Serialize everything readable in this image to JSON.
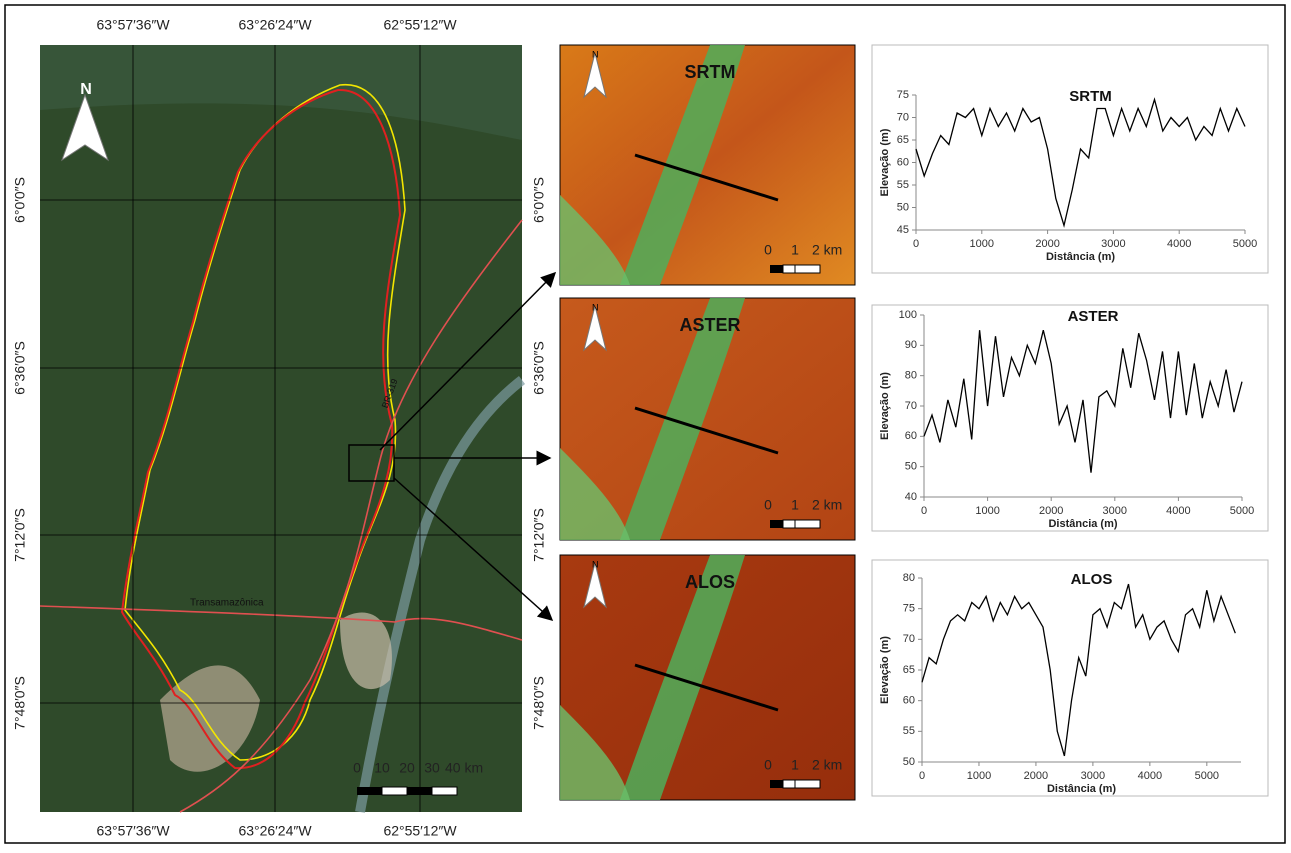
{
  "map": {
    "lon_labels": [
      "63°57′36″W",
      "63°26′24″W",
      "62°55′12″W"
    ],
    "lat_labels": [
      "6°0′0″S",
      "6°36′0″S",
      "7°12′0″S",
      "7°48′0″S"
    ],
    "north": "N",
    "road_labels": [
      "Transamazônica",
      "BR-319"
    ],
    "scale_labels": [
      "0",
      "10",
      "20",
      "30",
      "40 km"
    ]
  },
  "panels": [
    {
      "title": "SRTM",
      "north": "N",
      "scale_labels": [
        "0",
        "1",
        "2 km"
      ]
    },
    {
      "title": "ASTER",
      "north": "N",
      "scale_labels": [
        "0",
        "1",
        "2 km"
      ]
    },
    {
      "title": "ALOS",
      "north": "N",
      "scale_labels": [
        "0",
        "1",
        "2 km"
      ]
    }
  ],
  "chart_data": [
    {
      "type": "line",
      "title": "SRTM",
      "xlabel": "Distância (m)",
      "ylabel": "Elevação (m)",
      "color": "#000000",
      "x": [
        0,
        125,
        250,
        375,
        500,
        625,
        750,
        875,
        1000,
        1125,
        1250,
        1375,
        1500,
        1625,
        1750,
        1875,
        2000,
        2125,
        2250,
        2375,
        2500,
        2625,
        2750,
        2875,
        3000,
        3125,
        3250,
        3375,
        3500,
        3625,
        3750,
        3875,
        4000,
        4125,
        4250,
        4375,
        4500,
        4625,
        4750,
        4875,
        5000
      ],
      "values": [
        63,
        57,
        62,
        66,
        64,
        71,
        70,
        72,
        66,
        72,
        68,
        71,
        67,
        72,
        69,
        70,
        63,
        52,
        46,
        54,
        63,
        61,
        72,
        72,
        66,
        72,
        67,
        72,
        68,
        74,
        67,
        70,
        68,
        70,
        65,
        68,
        66,
        72,
        67,
        72,
        68
      ],
      "xlim": [
        0,
        5000
      ],
      "ylim": [
        45,
        75
      ],
      "xticks": [
        0,
        1000,
        2000,
        3000,
        4000,
        5000
      ],
      "yticks": [
        45,
        50,
        55,
        60,
        65,
        70,
        75
      ]
    },
    {
      "type": "line",
      "title": "ASTER",
      "xlabel": "Distância (m)",
      "ylabel": "Elevação (m)",
      "color": "#000000",
      "x": [
        0,
        125,
        250,
        375,
        500,
        625,
        750,
        875,
        1000,
        1125,
        1250,
        1375,
        1500,
        1625,
        1750,
        1875,
        2000,
        2125,
        2250,
        2375,
        2500,
        2625,
        2750,
        2875,
        3000,
        3125,
        3250,
        3375,
        3500,
        3625,
        3750,
        3875,
        4000,
        4125,
        4250,
        4375,
        4500,
        4625,
        4750,
        4875,
        5000
      ],
      "values": [
        60,
        67,
        58,
        72,
        63,
        79,
        59,
        95,
        70,
        93,
        73,
        86,
        80,
        90,
        84,
        95,
        84,
        64,
        70,
        58,
        72,
        48,
        73,
        75,
        70,
        89,
        76,
        94,
        85,
        72,
        88,
        66,
        88,
        67,
        84,
        66,
        78,
        70,
        82,
        68,
        78
      ],
      "xlim": [
        0,
        5000
      ],
      "ylim": [
        40,
        100
      ],
      "xticks": [
        0,
        1000,
        2000,
        3000,
        4000,
        5000
      ],
      "yticks": [
        40,
        50,
        60,
        70,
        80,
        90,
        100
      ]
    },
    {
      "type": "line",
      "title": "ALOS",
      "xlabel": "Distância (m)",
      "ylabel": "Elevação (m)",
      "color": "#000000",
      "x": [
        0,
        125,
        250,
        375,
        500,
        625,
        750,
        875,
        1000,
        1125,
        1250,
        1375,
        1500,
        1625,
        1750,
        1875,
        2000,
        2125,
        2250,
        2375,
        2500,
        2625,
        2750,
        2875,
        3000,
        3125,
        3250,
        3375,
        3500,
        3625,
        3750,
        3875,
        4000,
        4125,
        4250,
        4375,
        4500,
        4625,
        4750,
        4875,
        5000,
        5125,
        5250,
        5375,
        5500
      ],
      "values": [
        63,
        67,
        66,
        70,
        73,
        74,
        73,
        76,
        75,
        77,
        73,
        76,
        74,
        77,
        75,
        76,
        74,
        72,
        65,
        55,
        51,
        60,
        67,
        64,
        74,
        75,
        72,
        76,
        75,
        79,
        72,
        74,
        70,
        72,
        73,
        70,
        68,
        74,
        75,
        72,
        78,
        73,
        77,
        74,
        71
      ],
      "xlim": [
        0,
        5600
      ],
      "ylim": [
        50,
        80
      ],
      "xticks": [
        0,
        1000,
        2000,
        3000,
        4000,
        5000
      ],
      "yticks": [
        50,
        55,
        60,
        65,
        70,
        75,
        80
      ]
    }
  ]
}
